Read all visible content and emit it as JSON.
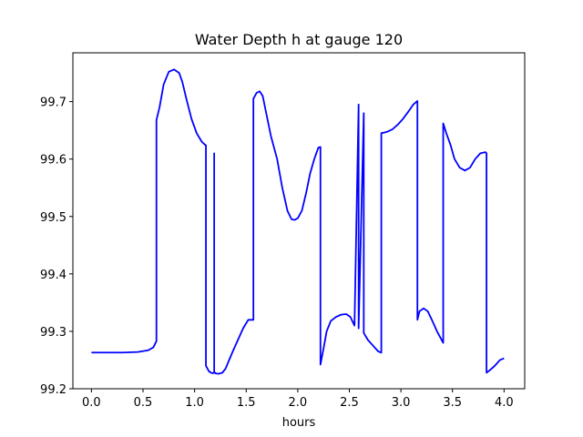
{
  "chart_data": {
    "type": "line",
    "title": "Water Depth h at gauge 120",
    "xlabel": "hours",
    "ylabel": "",
    "xlim": [
      -0.18,
      4.2
    ],
    "ylim": [
      99.2,
      99.785
    ],
    "xticks": [
      0.0,
      0.5,
      1.0,
      1.5,
      2.0,
      2.5,
      3.0,
      3.5,
      4.0
    ],
    "xtick_labels": [
      "0.0",
      "0.5",
      "1.0",
      "1.5",
      "2.0",
      "2.5",
      "3.0",
      "3.5",
      "4.0"
    ],
    "yticks": [
      99.2,
      99.3,
      99.4,
      99.5,
      99.6,
      99.7
    ],
    "ytick_labels": [
      "99.2",
      "99.3",
      "99.4",
      "99.5",
      "99.6",
      "99.7"
    ],
    "grid": false,
    "series": [
      {
        "name": "",
        "color": "#0000ff",
        "x": [
          0.0,
          0.3,
          0.45,
          0.55,
          0.6,
          0.63,
          0.63,
          0.66,
          0.7,
          0.75,
          0.8,
          0.85,
          0.88,
          0.92,
          0.97,
          1.02,
          1.07,
          1.1,
          1.11,
          1.11,
          1.14,
          1.17,
          1.19,
          1.19,
          1.19,
          1.2,
          1.2,
          1.23,
          1.27,
          1.3,
          1.33,
          1.37,
          1.42,
          1.47,
          1.52,
          1.57,
          1.57,
          1.6,
          1.63,
          1.66,
          1.7,
          1.74,
          1.8,
          1.85,
          1.9,
          1.94,
          1.97,
          2.0,
          2.04,
          2.08,
          2.12,
          2.16,
          2.2,
          2.22,
          2.22,
          2.25,
          2.28,
          2.32,
          2.37,
          2.42,
          2.47,
          2.51,
          2.55,
          2.59,
          2.59,
          2.64,
          2.64,
          2.68,
          2.73,
          2.78,
          2.81,
          2.81,
          2.86,
          2.92,
          2.97,
          3.02,
          3.07,
          3.12,
          3.16,
          3.16,
          3.18,
          3.22,
          3.26,
          3.3,
          3.35,
          3.41,
          3.41,
          3.44,
          3.48,
          3.52,
          3.57,
          3.62,
          3.67,
          3.72,
          3.77,
          3.82,
          3.83,
          3.83,
          3.86,
          3.91,
          3.96,
          4.0
        ],
        "y": [
          99.263,
          99.263,
          99.264,
          99.267,
          99.272,
          99.283,
          99.668,
          99.69,
          99.73,
          99.752,
          99.756,
          99.75,
          99.735,
          99.705,
          99.67,
          99.645,
          99.63,
          99.625,
          99.624,
          99.24,
          99.23,
          99.227,
          99.228,
          99.61,
          99.228,
          99.228,
          99.227,
          99.226,
          99.228,
          99.235,
          99.248,
          99.265,
          99.285,
          99.305,
          99.32,
          99.32,
          99.705,
          99.715,
          99.718,
          99.71,
          99.675,
          99.64,
          99.6,
          99.55,
          99.51,
          99.495,
          99.494,
          99.497,
          99.51,
          99.54,
          99.575,
          99.6,
          99.62,
          99.621,
          99.242,
          99.27,
          99.3,
          99.318,
          99.325,
          99.329,
          99.33,
          99.325,
          99.31,
          99.695,
          99.305,
          99.68,
          99.297,
          99.285,
          99.275,
          99.265,
          99.263,
          99.645,
          99.647,
          99.652,
          99.66,
          99.67,
          99.682,
          99.695,
          99.701,
          99.32,
          99.335,
          99.34,
          99.335,
          99.32,
          99.3,
          99.28,
          99.662,
          99.645,
          99.625,
          99.6,
          99.585,
          99.58,
          99.585,
          99.6,
          99.61,
          99.612,
          99.61,
          99.228,
          99.232,
          99.24,
          99.25,
          99.253
        ]
      }
    ]
  }
}
